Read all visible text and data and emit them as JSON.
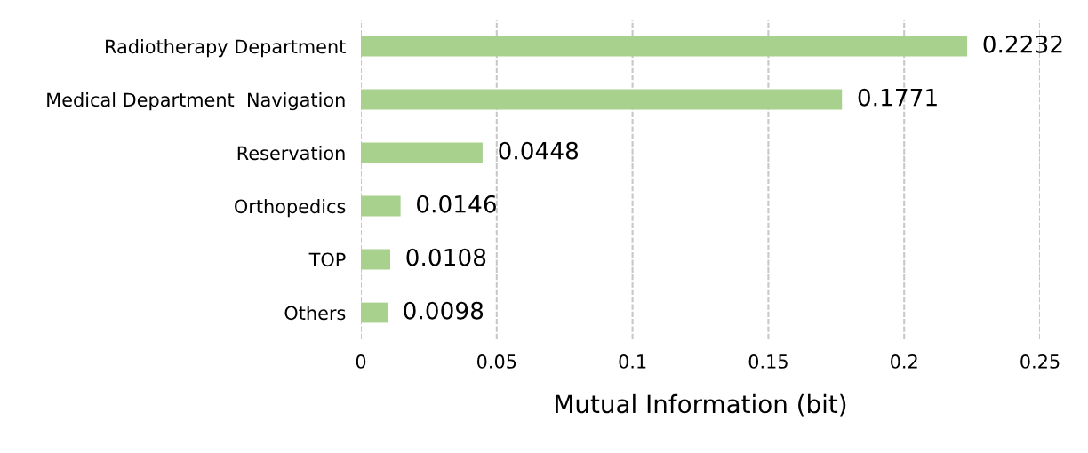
{
  "chart_data": {
    "type": "bar",
    "orientation": "horizontal",
    "xlabel": "Mutual Information (bit)",
    "categories": [
      "Radiotherapy Department",
      "Medical Department  Navigation",
      "Reservation",
      "Orthopedics",
      "TOP",
      "Others"
    ],
    "values": [
      0.2232,
      0.1771,
      0.0448,
      0.0146,
      0.0108,
      0.0098
    ],
    "color": "#a9d18e",
    "xlim": [
      0,
      0.25
    ],
    "xticks": [
      0,
      0.05,
      0.1,
      0.15,
      0.2,
      0.25
    ],
    "grid": "x",
    "data_labels": true
  }
}
